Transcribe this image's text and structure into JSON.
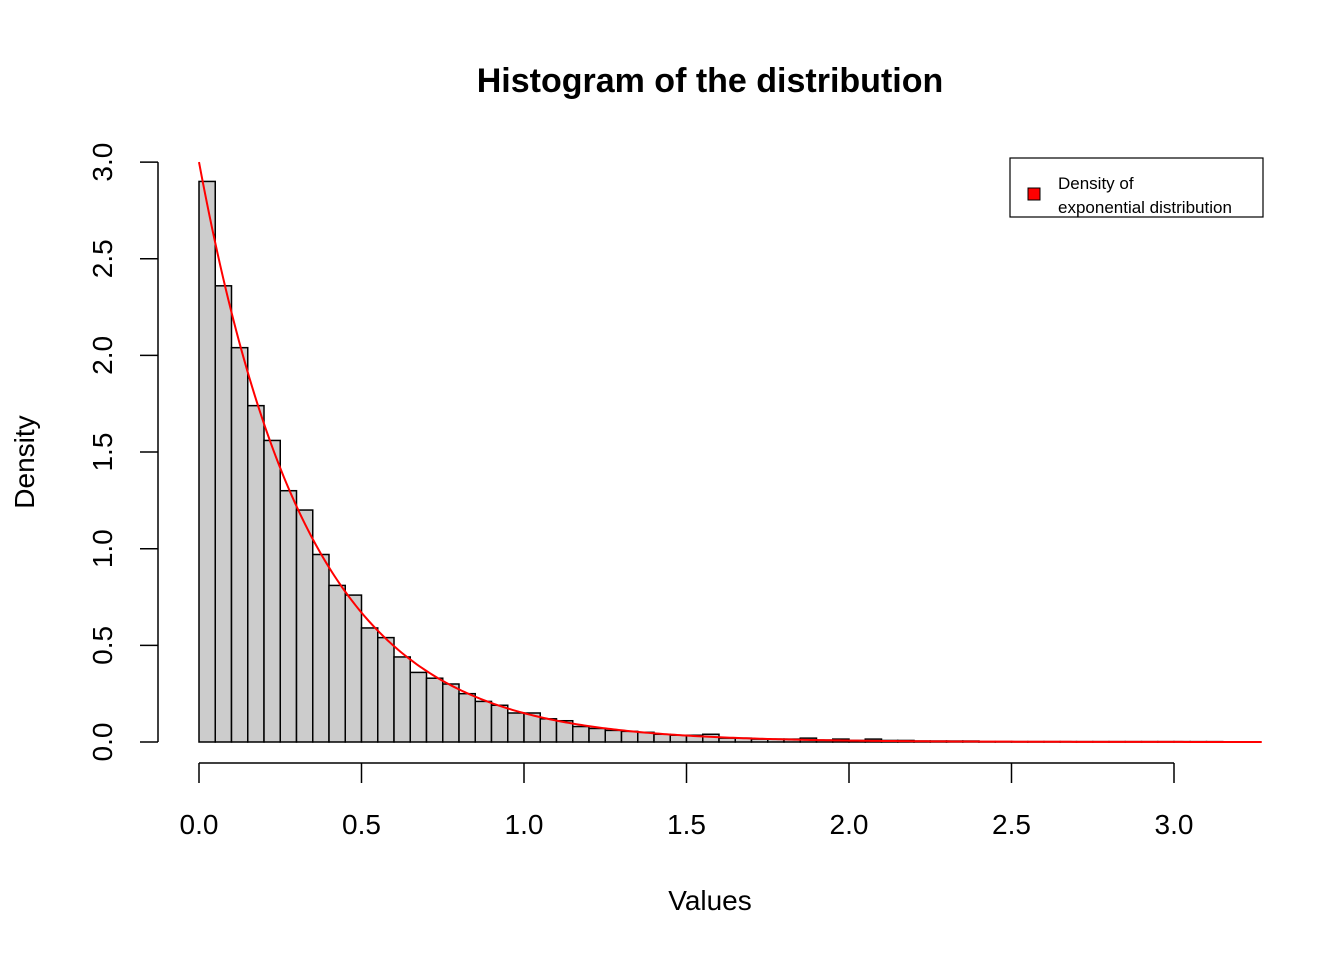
{
  "chart_data": {
    "type": "bar",
    "title": "Histogram of the distribution",
    "xlabel": "Values",
    "ylabel": "Density",
    "xlim": [
      0,
      3.27
    ],
    "ylim": [
      0,
      3.0
    ],
    "x_ticks": [
      "0.0",
      "0.5",
      "1.0",
      "1.5",
      "2.0",
      "2.5",
      "3.0"
    ],
    "y_ticks": [
      "0.0",
      "0.5",
      "1.0",
      "1.5",
      "2.0",
      "2.5",
      "3.0"
    ],
    "bin_width": 0.05,
    "bin_start": 0.0,
    "values": [
      2.9,
      2.36,
      2.04,
      1.74,
      1.56,
      1.3,
      1.2,
      0.97,
      0.81,
      0.76,
      0.59,
      0.54,
      0.44,
      0.36,
      0.33,
      0.3,
      0.25,
      0.21,
      0.19,
      0.15,
      0.15,
      0.12,
      0.11,
      0.08,
      0.07,
      0.06,
      0.055,
      0.05,
      0.04,
      0.035,
      0.035,
      0.04,
      0.02,
      0.02,
      0.015,
      0.015,
      0.015,
      0.02,
      0.01,
      0.015,
      0.008,
      0.015,
      0.008,
      0.008,
      0.005,
      0.005,
      0.005,
      0.005,
      0.002,
      0.002,
      0.002,
      0.002,
      0.002,
      0.002,
      0.002,
      0.002,
      0.002,
      0.002,
      0.002,
      0.002,
      0.002,
      0.002,
      0.002
    ],
    "density_curve": {
      "type": "line",
      "rate": 3,
      "x_range": [
        0,
        3.27
      ],
      "color": "#ff0000"
    },
    "bar_fill": "#cccccc",
    "bar_stroke": "#000000",
    "grid": false,
    "legend": {
      "placement": "top-right",
      "lines": [
        "Density of",
        "exponential distribution"
      ],
      "swatch_color": "#ff0000"
    }
  }
}
